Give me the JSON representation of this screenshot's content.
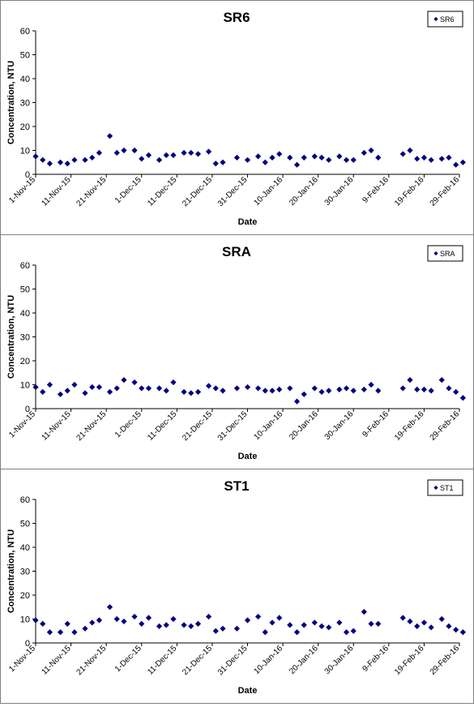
{
  "chart_data": [
    {
      "type": "scatter",
      "title": "SR6",
      "xlabel": "Date",
      "ylabel": "Concentration, NTU",
      "ylim": [
        0,
        60
      ],
      "yticks": [
        0,
        10,
        20,
        30,
        40,
        50,
        60
      ],
      "xlim": [
        "2015-11-01",
        "2016-02-29"
      ],
      "xtick_labels": [
        "1-Nov-15",
        "11-Nov-15",
        "21-Nov-15",
        "1-Dec-15",
        "11-Dec-15",
        "21-Dec-15",
        "31-Dec-15",
        "10-Jan-16",
        "20-Jan-16",
        "30-Jan-16",
        "9-Feb-16",
        "19-Feb-16",
        "29-Feb-16"
      ],
      "legend": "top-right",
      "grid": false,
      "marker_color": "#000080",
      "series": [
        {
          "name": "SR6",
          "x": [
            "2015-11-01",
            "2015-11-03",
            "2015-11-05",
            "2015-11-08",
            "2015-11-10",
            "2015-11-12",
            "2015-11-15",
            "2015-11-17",
            "2015-11-19",
            "2015-11-22",
            "2015-11-24",
            "2015-11-26",
            "2015-11-29",
            "2015-12-01",
            "2015-12-03",
            "2015-12-06",
            "2015-12-08",
            "2015-12-10",
            "2015-12-13",
            "2015-12-15",
            "2015-12-17",
            "2015-12-20",
            "2015-12-22",
            "2015-12-24",
            "2015-12-28",
            "2015-12-31",
            "2016-01-03",
            "2016-01-05",
            "2016-01-07",
            "2016-01-09",
            "2016-01-12",
            "2016-01-14",
            "2016-01-16",
            "2016-01-19",
            "2016-01-21",
            "2016-01-23",
            "2016-01-26",
            "2016-01-28",
            "2016-01-30",
            "2016-02-02",
            "2016-02-04",
            "2016-02-06",
            "2016-02-13",
            "2016-02-15",
            "2016-02-17",
            "2016-02-19",
            "2016-02-21",
            "2016-02-24",
            "2016-02-26",
            "2016-02-28",
            "2016-03-01"
          ],
          "y": [
            7.5,
            6,
            4.5,
            5,
            4.5,
            6,
            6,
            7,
            9,
            16,
            9,
            10,
            10,
            6.5,
            8,
            6,
            8,
            8,
            9,
            9,
            8.5,
            9.5,
            4.5,
            5,
            7,
            6,
            7.5,
            5,
            7,
            8.5,
            7,
            4,
            7,
            7.5,
            7,
            6,
            7.5,
            6,
            6,
            9,
            10,
            7,
            8.5,
            10,
            6.5,
            7,
            6,
            6.5,
            7,
            4,
            5
          ]
        }
      ]
    },
    {
      "type": "scatter",
      "title": "SRA",
      "xlabel": "Date",
      "ylabel": "Concentration, NTU",
      "ylim": [
        0,
        60
      ],
      "yticks": [
        0,
        10,
        20,
        30,
        40,
        50,
        60
      ],
      "xlim": [
        "2015-11-01",
        "2016-02-29"
      ],
      "xtick_labels": [
        "1-Nov-15",
        "11-Nov-15",
        "21-Nov-15",
        "1-Dec-15",
        "11-Dec-15",
        "21-Dec-15",
        "31-Dec-15",
        "10-Jan-16",
        "20-Jan-16",
        "30-Jan-16",
        "9-Feb-16",
        "19-Feb-16",
        "29-Feb-16"
      ],
      "legend": "top-right",
      "grid": false,
      "marker_color": "#000080",
      "series": [
        {
          "name": "SRA",
          "x": [
            "2015-11-01",
            "2015-11-03",
            "2015-11-05",
            "2015-11-08",
            "2015-11-10",
            "2015-11-12",
            "2015-11-15",
            "2015-11-17",
            "2015-11-19",
            "2015-11-22",
            "2015-11-24",
            "2015-11-26",
            "2015-11-29",
            "2015-12-01",
            "2015-12-03",
            "2015-12-06",
            "2015-12-08",
            "2015-12-10",
            "2015-12-13",
            "2015-12-15",
            "2015-12-17",
            "2015-12-20",
            "2015-12-22",
            "2015-12-24",
            "2015-12-28",
            "2015-12-31",
            "2016-01-03",
            "2016-01-05",
            "2016-01-07",
            "2016-01-09",
            "2016-01-12",
            "2016-01-14",
            "2016-01-16",
            "2016-01-19",
            "2016-01-21",
            "2016-01-23",
            "2016-01-26",
            "2016-01-28",
            "2016-01-30",
            "2016-02-02",
            "2016-02-04",
            "2016-02-06",
            "2016-02-13",
            "2016-02-15",
            "2016-02-17",
            "2016-02-19",
            "2016-02-21",
            "2016-02-24",
            "2016-02-26",
            "2016-02-28",
            "2016-03-01"
          ],
          "y": [
            9,
            7,
            10,
            6,
            7.5,
            10,
            6.5,
            9,
            9,
            7,
            8.5,
            12,
            11,
            8.5,
            8.5,
            8.5,
            7.5,
            11,
            7,
            6.5,
            7,
            9.5,
            8.5,
            7.5,
            8.5,
            9,
            8.5,
            7.5,
            7.5,
            8,
            8.5,
            3,
            6,
            8.5,
            7,
            7.5,
            8,
            8.5,
            7.5,
            8,
            10,
            7.5,
            8.5,
            12,
            8,
            8,
            7.5,
            12,
            8.5,
            7,
            4.5
          ]
        }
      ]
    },
    {
      "type": "scatter",
      "title": "ST1",
      "xlabel": "Date",
      "ylabel": "Concentration, NTU",
      "ylim": [
        0,
        60
      ],
      "yticks": [
        0,
        10,
        20,
        30,
        40,
        50,
        60
      ],
      "xlim": [
        "2015-11-01",
        "2016-02-29"
      ],
      "xtick_labels": [
        "1-Nov-15",
        "11-Nov-15",
        "21-Nov-15",
        "1-Dec-15",
        "11-Dec-15",
        "21-Dec-15",
        "31-Dec-15",
        "10-Jan-16",
        "20-Jan-16",
        "30-Jan-16",
        "9-Feb-16",
        "19-Feb-16",
        "29-Feb-16"
      ],
      "legend": "top-right",
      "grid": false,
      "marker_color": "#000080",
      "series": [
        {
          "name": "ST1",
          "x": [
            "2015-11-01",
            "2015-11-03",
            "2015-11-05",
            "2015-11-08",
            "2015-11-10",
            "2015-11-12",
            "2015-11-15",
            "2015-11-17",
            "2015-11-19",
            "2015-11-22",
            "2015-11-24",
            "2015-11-26",
            "2015-11-29",
            "2015-12-01",
            "2015-12-03",
            "2015-12-06",
            "2015-12-08",
            "2015-12-10",
            "2015-12-13",
            "2015-12-15",
            "2015-12-17",
            "2015-12-20",
            "2015-12-22",
            "2015-12-24",
            "2015-12-28",
            "2015-12-31",
            "2016-01-03",
            "2016-01-05",
            "2016-01-07",
            "2016-01-09",
            "2016-01-12",
            "2016-01-14",
            "2016-01-16",
            "2016-01-19",
            "2016-01-21",
            "2016-01-23",
            "2016-01-26",
            "2016-01-28",
            "2016-01-30",
            "2016-02-02",
            "2016-02-04",
            "2016-02-06",
            "2016-02-13",
            "2016-02-15",
            "2016-02-17",
            "2016-02-19",
            "2016-02-21",
            "2016-02-24",
            "2016-02-26",
            "2016-02-28",
            "2016-03-01"
          ],
          "y": [
            9.5,
            8,
            4.5,
            4.5,
            8,
            4.5,
            6,
            8.5,
            9.5,
            15,
            10,
            9,
            11,
            8,
            10.5,
            7,
            7.5,
            10,
            7.5,
            7,
            8,
            11,
            5,
            6,
            6,
            9.5,
            11,
            4.5,
            8.5,
            10.5,
            7.5,
            4.5,
            7.5,
            8.5,
            7,
            6.5,
            8.5,
            4.5,
            5,
            13,
            8,
            8,
            10.5,
            9,
            7,
            8.5,
            6.5,
            10,
            7,
            5.5,
            4.5
          ]
        }
      ]
    }
  ]
}
